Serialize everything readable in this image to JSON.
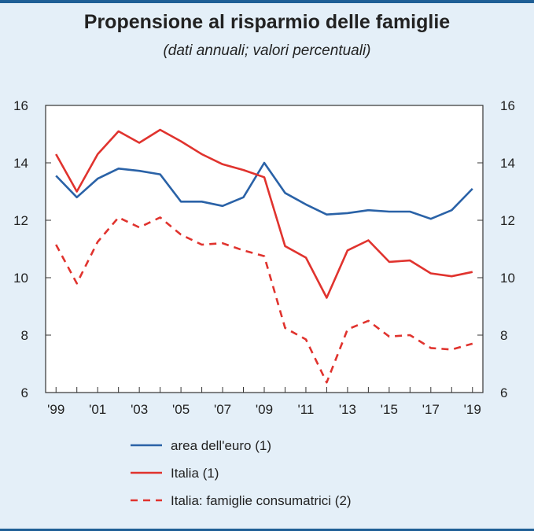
{
  "chart_data": {
    "type": "line",
    "title": "Propensione al risparmio delle famiglie",
    "subtitle": "(dati annuali; valori percentuali)",
    "x": [
      1999,
      2000,
      2001,
      2002,
      2003,
      2004,
      2005,
      2006,
      2007,
      2008,
      2009,
      2010,
      2011,
      2012,
      2013,
      2014,
      2015,
      2016,
      2017,
      2018,
      2019
    ],
    "x_tick_labels": [
      "'99",
      "'01",
      "'03",
      "'05",
      "'07",
      "'09",
      "'11",
      "'13",
      "'15",
      "'17",
      "'19"
    ],
    "y_ticks": [
      6,
      8,
      10,
      12,
      14,
      16
    ],
    "ylim": [
      6,
      16
    ],
    "xlim": [
      1998.5,
      2019.5
    ],
    "grid": false,
    "legend_position": "bottom",
    "series": [
      {
        "name": "area dell'euro (1)",
        "color": "#2a62a7",
        "style": "solid",
        "values": [
          13.55,
          12.8,
          13.45,
          13.8,
          13.72,
          13.6,
          12.65,
          12.65,
          12.5,
          12.8,
          14.0,
          12.95,
          12.55,
          12.2,
          12.25,
          12.35,
          12.3,
          12.3,
          12.05,
          12.35,
          13.1
        ]
      },
      {
        "name": "Italia (1)",
        "color": "#e0332e",
        "style": "solid",
        "values": [
          14.3,
          13.0,
          14.3,
          15.1,
          14.7,
          15.15,
          14.75,
          14.3,
          13.95,
          13.75,
          13.5,
          11.1,
          10.7,
          9.3,
          10.95,
          11.3,
          10.55,
          10.6,
          10.15,
          10.05,
          10.2
        ]
      },
      {
        "name": "Italia: famiglie consumatrici (2)",
        "color": "#e0332e",
        "style": "dashed",
        "values": [
          11.15,
          9.8,
          11.25,
          12.1,
          11.75,
          12.1,
          11.5,
          11.15,
          11.2,
          10.95,
          10.75,
          8.25,
          7.85,
          6.35,
          8.2,
          8.5,
          7.95,
          8.0,
          7.55,
          7.5,
          7.7
        ]
      }
    ]
  }
}
